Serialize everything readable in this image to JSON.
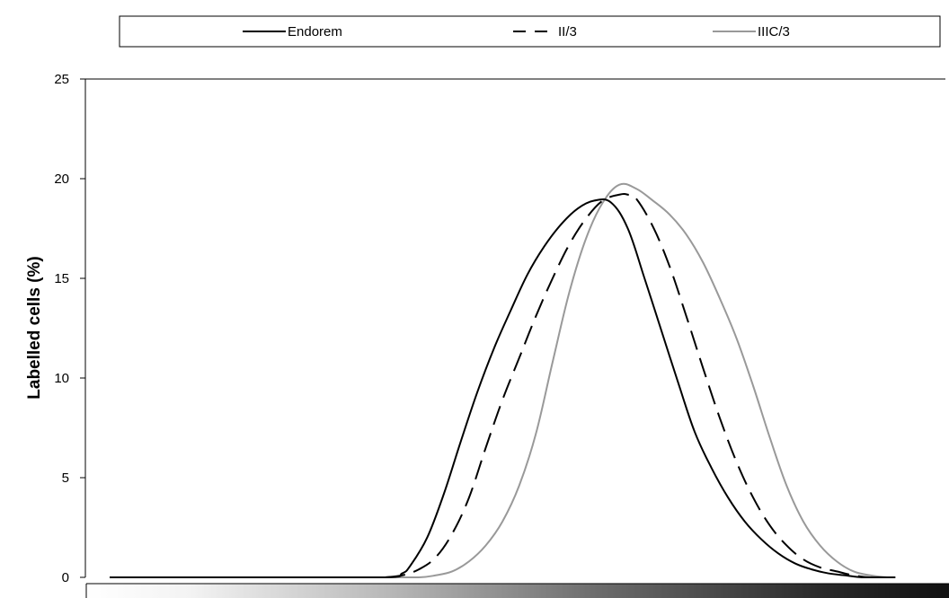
{
  "chart_data": {
    "type": "line",
    "title": "",
    "xlabel": "",
    "ylabel": "Labelled cells (%)",
    "ylim": [
      0,
      25
    ],
    "xlim": [
      0,
      100
    ],
    "yticks": [
      "0",
      "5",
      "10",
      "15",
      "20",
      "25"
    ],
    "grid": false,
    "legend": "top",
    "series": [
      {
        "name": "Endorem",
        "color": "#000000",
        "dash": "solid",
        "x": [
          0,
          20,
          33,
          35,
          36,
          38,
          40,
          42,
          44,
          46,
          48,
          50,
          52,
          54,
          56,
          58,
          60,
          62,
          64,
          66,
          68,
          70,
          72,
          74,
          76,
          78,
          80,
          82,
          84,
          86,
          88,
          90,
          92,
          94
        ],
        "values": [
          0,
          0,
          0,
          0.2,
          0.6,
          2.0,
          4.2,
          6.8,
          9.3,
          11.5,
          13.4,
          15.2,
          16.6,
          17.7,
          18.5,
          18.9,
          18.8,
          17.5,
          15.0,
          12.4,
          9.8,
          7.3,
          5.5,
          4.0,
          2.8,
          1.9,
          1.2,
          0.7,
          0.4,
          0.2,
          0.1,
          0,
          0,
          0
        ]
      },
      {
        "name": "II/3",
        "color": "#000000",
        "dash": "dashed",
        "x": [
          33,
          35,
          37,
          39,
          41,
          43,
          45,
          47,
          49,
          51,
          53,
          55,
          57,
          59,
          61,
          62,
          63,
          65,
          67,
          69,
          71,
          73,
          75,
          77,
          79,
          81,
          83,
          85,
          87,
          89,
          91,
          93,
          94
        ],
        "values": [
          0,
          0.1,
          0.4,
          1.0,
          2.2,
          4.0,
          6.5,
          8.9,
          11.0,
          13.1,
          15.0,
          16.7,
          18.0,
          18.9,
          19.2,
          19.2,
          19.0,
          17.6,
          15.6,
          13.1,
          10.5,
          8.0,
          5.8,
          4.0,
          2.6,
          1.6,
          0.9,
          0.5,
          0.3,
          0.1,
          0,
          0,
          0
        ]
      },
      {
        "name": "IIIC/3",
        "color": "#999999",
        "dash": "solid",
        "x": [
          33,
          37,
          39,
          41,
          43,
          45,
          47,
          49,
          51,
          53,
          55,
          57,
          59,
          61,
          63,
          65,
          67,
          69,
          71,
          73,
          75,
          77,
          79,
          81,
          83,
          85,
          87,
          89,
          91,
          93,
          94
        ],
        "values": [
          0,
          0,
          0.1,
          0.3,
          0.8,
          1.6,
          2.8,
          4.6,
          7.2,
          10.8,
          14.3,
          17.0,
          18.8,
          19.7,
          19.5,
          18.9,
          18.2,
          17.2,
          15.8,
          14.0,
          12.0,
          9.6,
          7.0,
          4.6,
          2.8,
          1.6,
          0.8,
          0.3,
          0.1,
          0,
          0
        ]
      }
    ]
  }
}
